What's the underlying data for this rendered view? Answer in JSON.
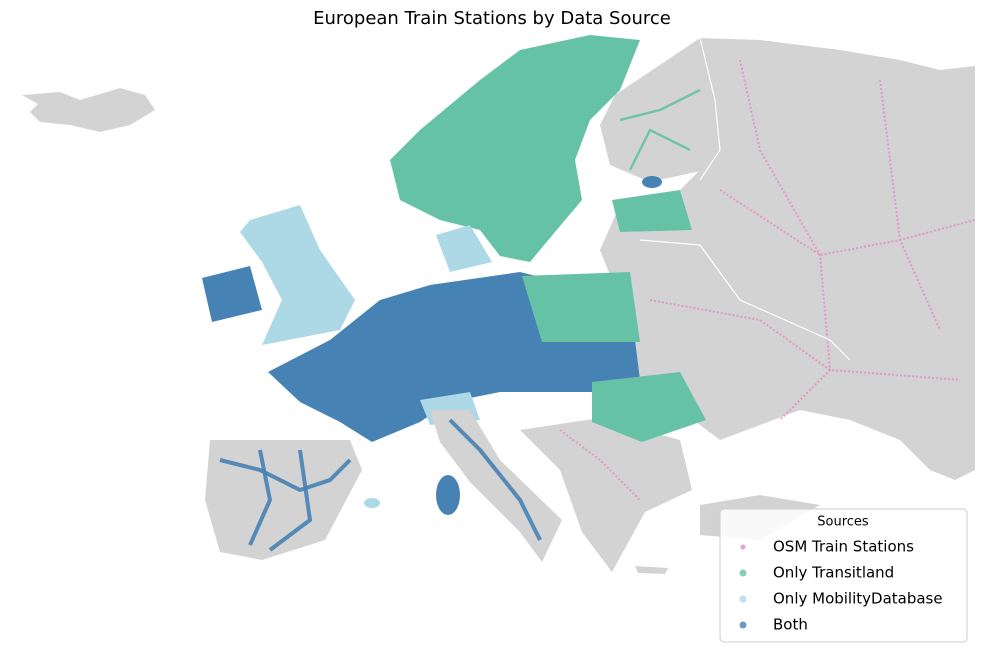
{
  "title": "European Train Stations by Data Source",
  "legend": {
    "title": "Sources",
    "items": [
      {
        "label": "OSM Train Stations",
        "color": "#e78ac3"
      },
      {
        "label": "Only Transitland",
        "color": "#66c2a5"
      },
      {
        "label": "Only MobilityDatabase",
        "color": "#add8e6"
      },
      {
        "label": "Both",
        "color": "#4682b4"
      }
    ]
  }
}
